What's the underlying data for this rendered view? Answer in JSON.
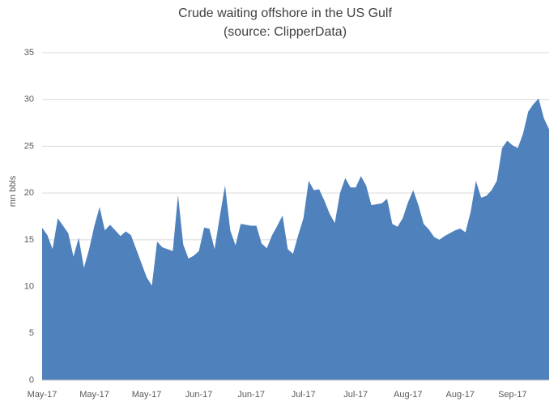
{
  "chart_data": {
    "type": "area",
    "title": "Crude waiting offshore in the US Gulf",
    "subtitle": "(source: ClipperData)",
    "y_label": "mn bbls",
    "categories": [
      "May-17",
      null,
      null,
      null,
      null,
      null,
      null,
      null,
      null,
      null,
      "May-17",
      null,
      null,
      null,
      null,
      null,
      null,
      null,
      null,
      null,
      "May-17",
      null,
      null,
      null,
      null,
      null,
      null,
      null,
      null,
      null,
      "Jun-17",
      null,
      null,
      null,
      null,
      null,
      null,
      null,
      null,
      null,
      "Jun-17",
      null,
      null,
      null,
      null,
      null,
      null,
      null,
      null,
      null,
      "Jul-17",
      null,
      null,
      null,
      null,
      null,
      null,
      null,
      null,
      null,
      "Jul-17",
      null,
      null,
      null,
      null,
      null,
      null,
      null,
      null,
      null,
      "Aug-17",
      null,
      null,
      null,
      null,
      null,
      null,
      null,
      null,
      null,
      "Aug-17",
      null,
      null,
      null,
      null,
      null,
      null,
      null,
      null,
      null,
      "Sep-17",
      null,
      null,
      null,
      null,
      null,
      null,
      null
    ],
    "values": [
      16.3,
      15.5,
      14,
      17.3,
      16.5,
      15.7,
      13.2,
      15.2,
      12,
      14,
      16.5,
      18.5,
      16,
      16.6,
      16,
      15.4,
      15.9,
      15.5,
      14,
      12.5,
      11,
      10.1,
      14.8,
      14.2,
      14,
      13.8,
      19.8,
      14.5,
      13,
      13.3,
      13.8,
      16.3,
      16.2,
      14,
      17.5,
      20.8,
      16,
      14.4,
      16.7,
      16.6,
      16.5,
      16.5,
      14.6,
      14.1,
      15.5,
      16.5,
      17.6,
      14,
      13.5,
      15.5,
      17.3,
      21.3,
      20.3,
      20.4,
      19.2,
      17.8,
      16.8,
      20,
      21.6,
      20.6,
      20.6,
      21.8,
      20.8,
      18.7,
      18.8,
      18.9,
      19.4,
      16.7,
      16.4,
      17.3,
      19,
      20.3,
      18.7,
      16.7,
      16.1,
      15.3,
      15,
      15.4,
      15.7,
      16,
      16.2,
      15.8,
      18,
      21.3,
      19.5,
      19.7,
      20.3,
      21.3,
      24.8,
      25.6,
      25.1,
      24.8,
      26.3,
      28.7,
      29.5,
      30.1,
      28,
      26.8
    ],
    "color": "#4f81bd",
    "ylim": [
      0,
      35
    ],
    "yticks": [
      0,
      5,
      10,
      15,
      20,
      25,
      30,
      35
    ],
    "grid": true
  }
}
